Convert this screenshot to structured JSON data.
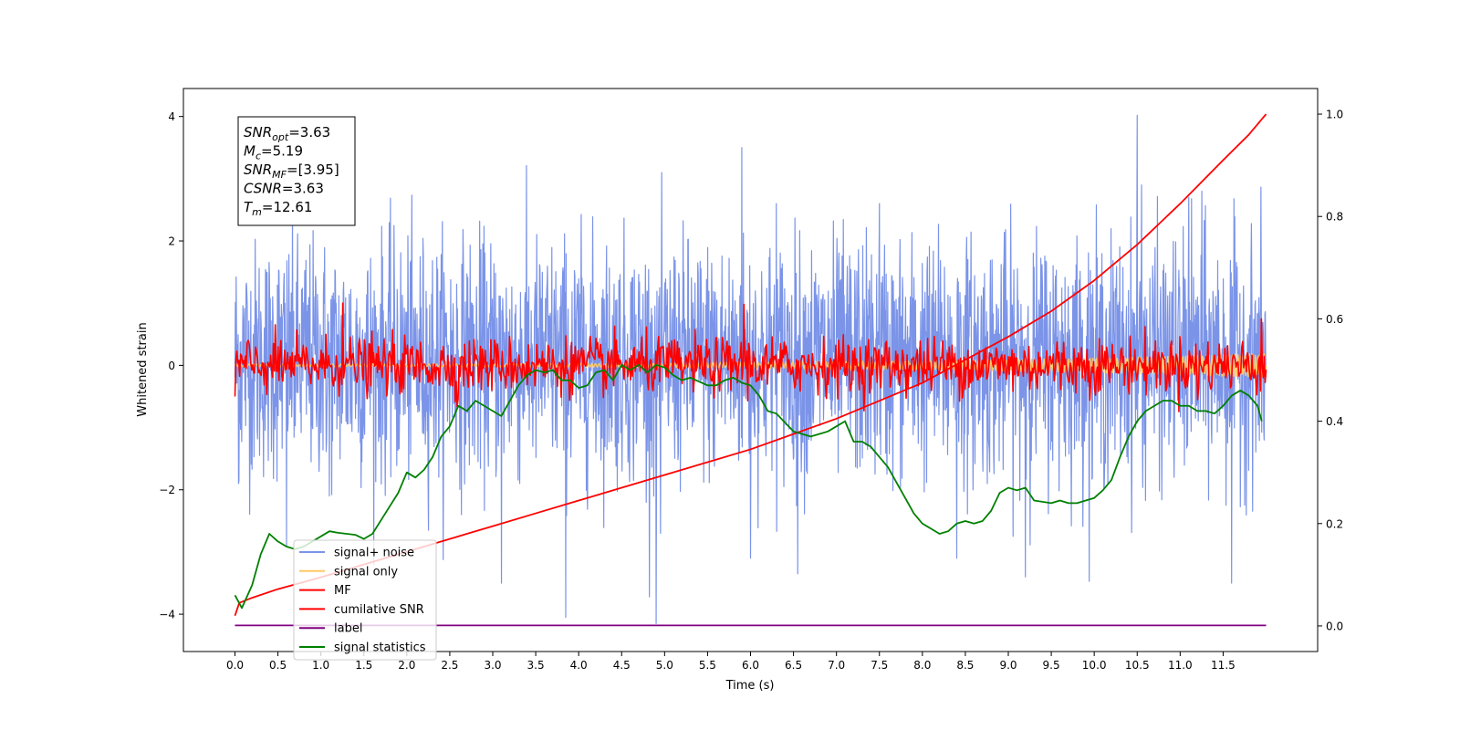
{
  "chart_data": {
    "type": "line",
    "xlabel": "Time (s)",
    "ylabel": "Whitened strain",
    "xlim": [
      -0.6,
      12.6
    ],
    "ylim": [
      -4.6,
      4.45
    ],
    "y2lim": [
      -0.05,
      1.05
    ],
    "xticks": [
      "0.0",
      "0.5",
      "1.0",
      "1.5",
      "2.0",
      "2.5",
      "3.0",
      "3.5",
      "4.0",
      "4.5",
      "5.0",
      "5.5",
      "6.0",
      "6.5",
      "7.0",
      "7.5",
      "8.0",
      "8.5",
      "9.0",
      "9.5",
      "10.0",
      "10.5",
      "11.0",
      "11.5"
    ],
    "yticks": [
      "−4",
      "−2",
      "0",
      "2",
      "4"
    ],
    "y2ticks": [
      "0.0",
      "0.2",
      "0.4",
      "0.6",
      "0.8",
      "1.0"
    ],
    "legend_position": "lower-left",
    "annotation": {
      "lines": [
        {
          "sym": "SNR",
          "sub": "opt",
          "val": "=3.63"
        },
        {
          "sym": "M",
          "sub": "c",
          "val": "=5.19"
        },
        {
          "sym": "SNR",
          "sub": "MF",
          "val": "=[3.95]"
        },
        {
          "sym": "CSNR",
          "sub": "",
          "val": "=3.63"
        },
        {
          "sym": "T",
          "sub": "m",
          "val": "=12.61"
        }
      ]
    },
    "series": [
      {
        "name": "signal+ noise",
        "color": "#7b94e8",
        "axis": "left",
        "style": "noise",
        "envelope": {
          "x": [
            0,
            12
          ],
          "mean": 0.1,
          "std": 0.95
        },
        "peaks": [
          [
            0.04,
            2.6
          ],
          [
            0.04,
            -1.9
          ],
          [
            0.6,
            -2.9
          ],
          [
            1.1,
            -2.1
          ],
          [
            3.1,
            -3.5
          ],
          [
            3.85,
            -4.05
          ],
          [
            4.9,
            -4.15
          ],
          [
            4.95,
            -2.7
          ],
          [
            5.9,
            3.5
          ],
          [
            6.0,
            -3.1
          ],
          [
            6.3,
            2.6
          ],
          [
            6.55,
            -3.35
          ],
          [
            7.5,
            2.6
          ],
          [
            8.4,
            -3.1
          ],
          [
            9.2,
            -3.4
          ],
          [
            10.5,
            4.02
          ],
          [
            10.55,
            2.9
          ],
          [
            11.1,
            2.7
          ],
          [
            11.6,
            -3.5
          ],
          [
            11.25,
            2.8
          ]
        ]
      },
      {
        "name": "signal only",
        "color": "#ffc966",
        "axis": "left",
        "style": "chirp",
        "amp_start": 0.02,
        "amp_end": 0.2
      },
      {
        "name": "MF",
        "color": "#ff0000",
        "axis": "left",
        "style": "noise",
        "envelope": {
          "x": [
            0,
            12
          ],
          "mean": 0.0,
          "std": 0.22
        },
        "peaks": [
          [
            0.0,
            0.75
          ],
          [
            1.25,
            1.0
          ],
          [
            5.92,
            0.98
          ],
          [
            11.95,
            0.75
          ],
          [
            0.0,
            -0.5
          ],
          [
            2.6,
            -0.55
          ],
          [
            11.2,
            -0.55
          ]
        ]
      },
      {
        "name": "cumilative SNR",
        "color": "#ff0000",
        "axis": "right",
        "x": [
          0.0,
          0.05,
          0.2,
          0.5,
          1.0,
          1.5,
          2.0,
          2.5,
          3.0,
          3.5,
          4.0,
          4.5,
          5.0,
          5.5,
          6.0,
          6.5,
          7.0,
          7.5,
          8.0,
          8.5,
          9.0,
          9.5,
          10.0,
          10.5,
          11.0,
          11.5,
          11.8,
          12.0
        ],
        "y": [
          0.02,
          0.045,
          0.055,
          0.072,
          0.095,
          0.12,
          0.145,
          0.17,
          0.195,
          0.22,
          0.245,
          0.27,
          0.295,
          0.32,
          0.345,
          0.375,
          0.405,
          0.44,
          0.475,
          0.52,
          0.565,
          0.615,
          0.675,
          0.745,
          0.825,
          0.91,
          0.96,
          1.0
        ]
      },
      {
        "name": "label",
        "color": "#800080",
        "axis": "right",
        "x": [
          0.0,
          12.0
        ],
        "y": [
          0.001,
          0.001
        ]
      },
      {
        "name": "signal statistics",
        "color": "#008000",
        "axis": "right",
        "x": [
          0.0,
          0.08,
          0.2,
          0.3,
          0.4,
          0.5,
          0.6,
          0.7,
          0.8,
          1.0,
          1.1,
          1.2,
          1.4,
          1.5,
          1.6,
          1.75,
          1.9,
          2.0,
          2.1,
          2.2,
          2.3,
          2.4,
          2.5,
          2.6,
          2.7,
          2.8,
          2.9,
          3.0,
          3.1,
          3.2,
          3.3,
          3.4,
          3.5,
          3.6,
          3.7,
          3.8,
          3.9,
          4.0,
          4.1,
          4.2,
          4.3,
          4.4,
          4.5,
          4.6,
          4.7,
          4.8,
          4.9,
          5.0,
          5.1,
          5.2,
          5.3,
          5.5,
          5.6,
          5.7,
          5.8,
          5.9,
          6.0,
          6.1,
          6.2,
          6.3,
          6.5,
          6.6,
          6.7,
          6.8,
          6.9,
          7.0,
          7.1,
          7.2,
          7.3,
          7.4,
          7.5,
          7.6,
          7.7,
          7.8,
          7.9,
          8.0,
          8.1,
          8.2,
          8.3,
          8.4,
          8.5,
          8.6,
          8.7,
          8.8,
          8.9,
          9.0,
          9.1,
          9.2,
          9.3,
          9.5,
          9.6,
          9.7,
          9.8,
          9.9,
          10.0,
          10.1,
          10.2,
          10.3,
          10.4,
          10.5,
          10.6,
          10.7,
          10.8,
          10.9,
          11.0,
          11.1,
          11.2,
          11.3,
          11.4,
          11.5,
          11.6,
          11.7,
          11.8,
          11.9,
          11.95
        ],
        "y": [
          0.06,
          0.035,
          0.08,
          0.14,
          0.18,
          0.165,
          0.155,
          0.15,
          0.155,
          0.175,
          0.185,
          0.182,
          0.178,
          0.17,
          0.18,
          0.22,
          0.26,
          0.3,
          0.29,
          0.305,
          0.33,
          0.37,
          0.39,
          0.43,
          0.42,
          0.44,
          0.43,
          0.42,
          0.41,
          0.44,
          0.47,
          0.49,
          0.5,
          0.495,
          0.5,
          0.48,
          0.48,
          0.465,
          0.47,
          0.495,
          0.5,
          0.48,
          0.51,
          0.5,
          0.51,
          0.495,
          0.51,
          0.505,
          0.49,
          0.48,
          0.485,
          0.47,
          0.47,
          0.48,
          0.485,
          0.475,
          0.47,
          0.45,
          0.42,
          0.415,
          0.38,
          0.375,
          0.37,
          0.375,
          0.38,
          0.39,
          0.4,
          0.36,
          0.36,
          0.35,
          0.33,
          0.31,
          0.28,
          0.25,
          0.22,
          0.2,
          0.19,
          0.18,
          0.185,
          0.2,
          0.205,
          0.2,
          0.205,
          0.225,
          0.26,
          0.27,
          0.265,
          0.27,
          0.245,
          0.24,
          0.245,
          0.24,
          0.24,
          0.245,
          0.25,
          0.265,
          0.285,
          0.33,
          0.37,
          0.4,
          0.42,
          0.43,
          0.44,
          0.44,
          0.43,
          0.43,
          0.42,
          0.42,
          0.415,
          0.43,
          0.45,
          0.46,
          0.45,
          0.43,
          0.4
        ]
      }
    ]
  }
}
